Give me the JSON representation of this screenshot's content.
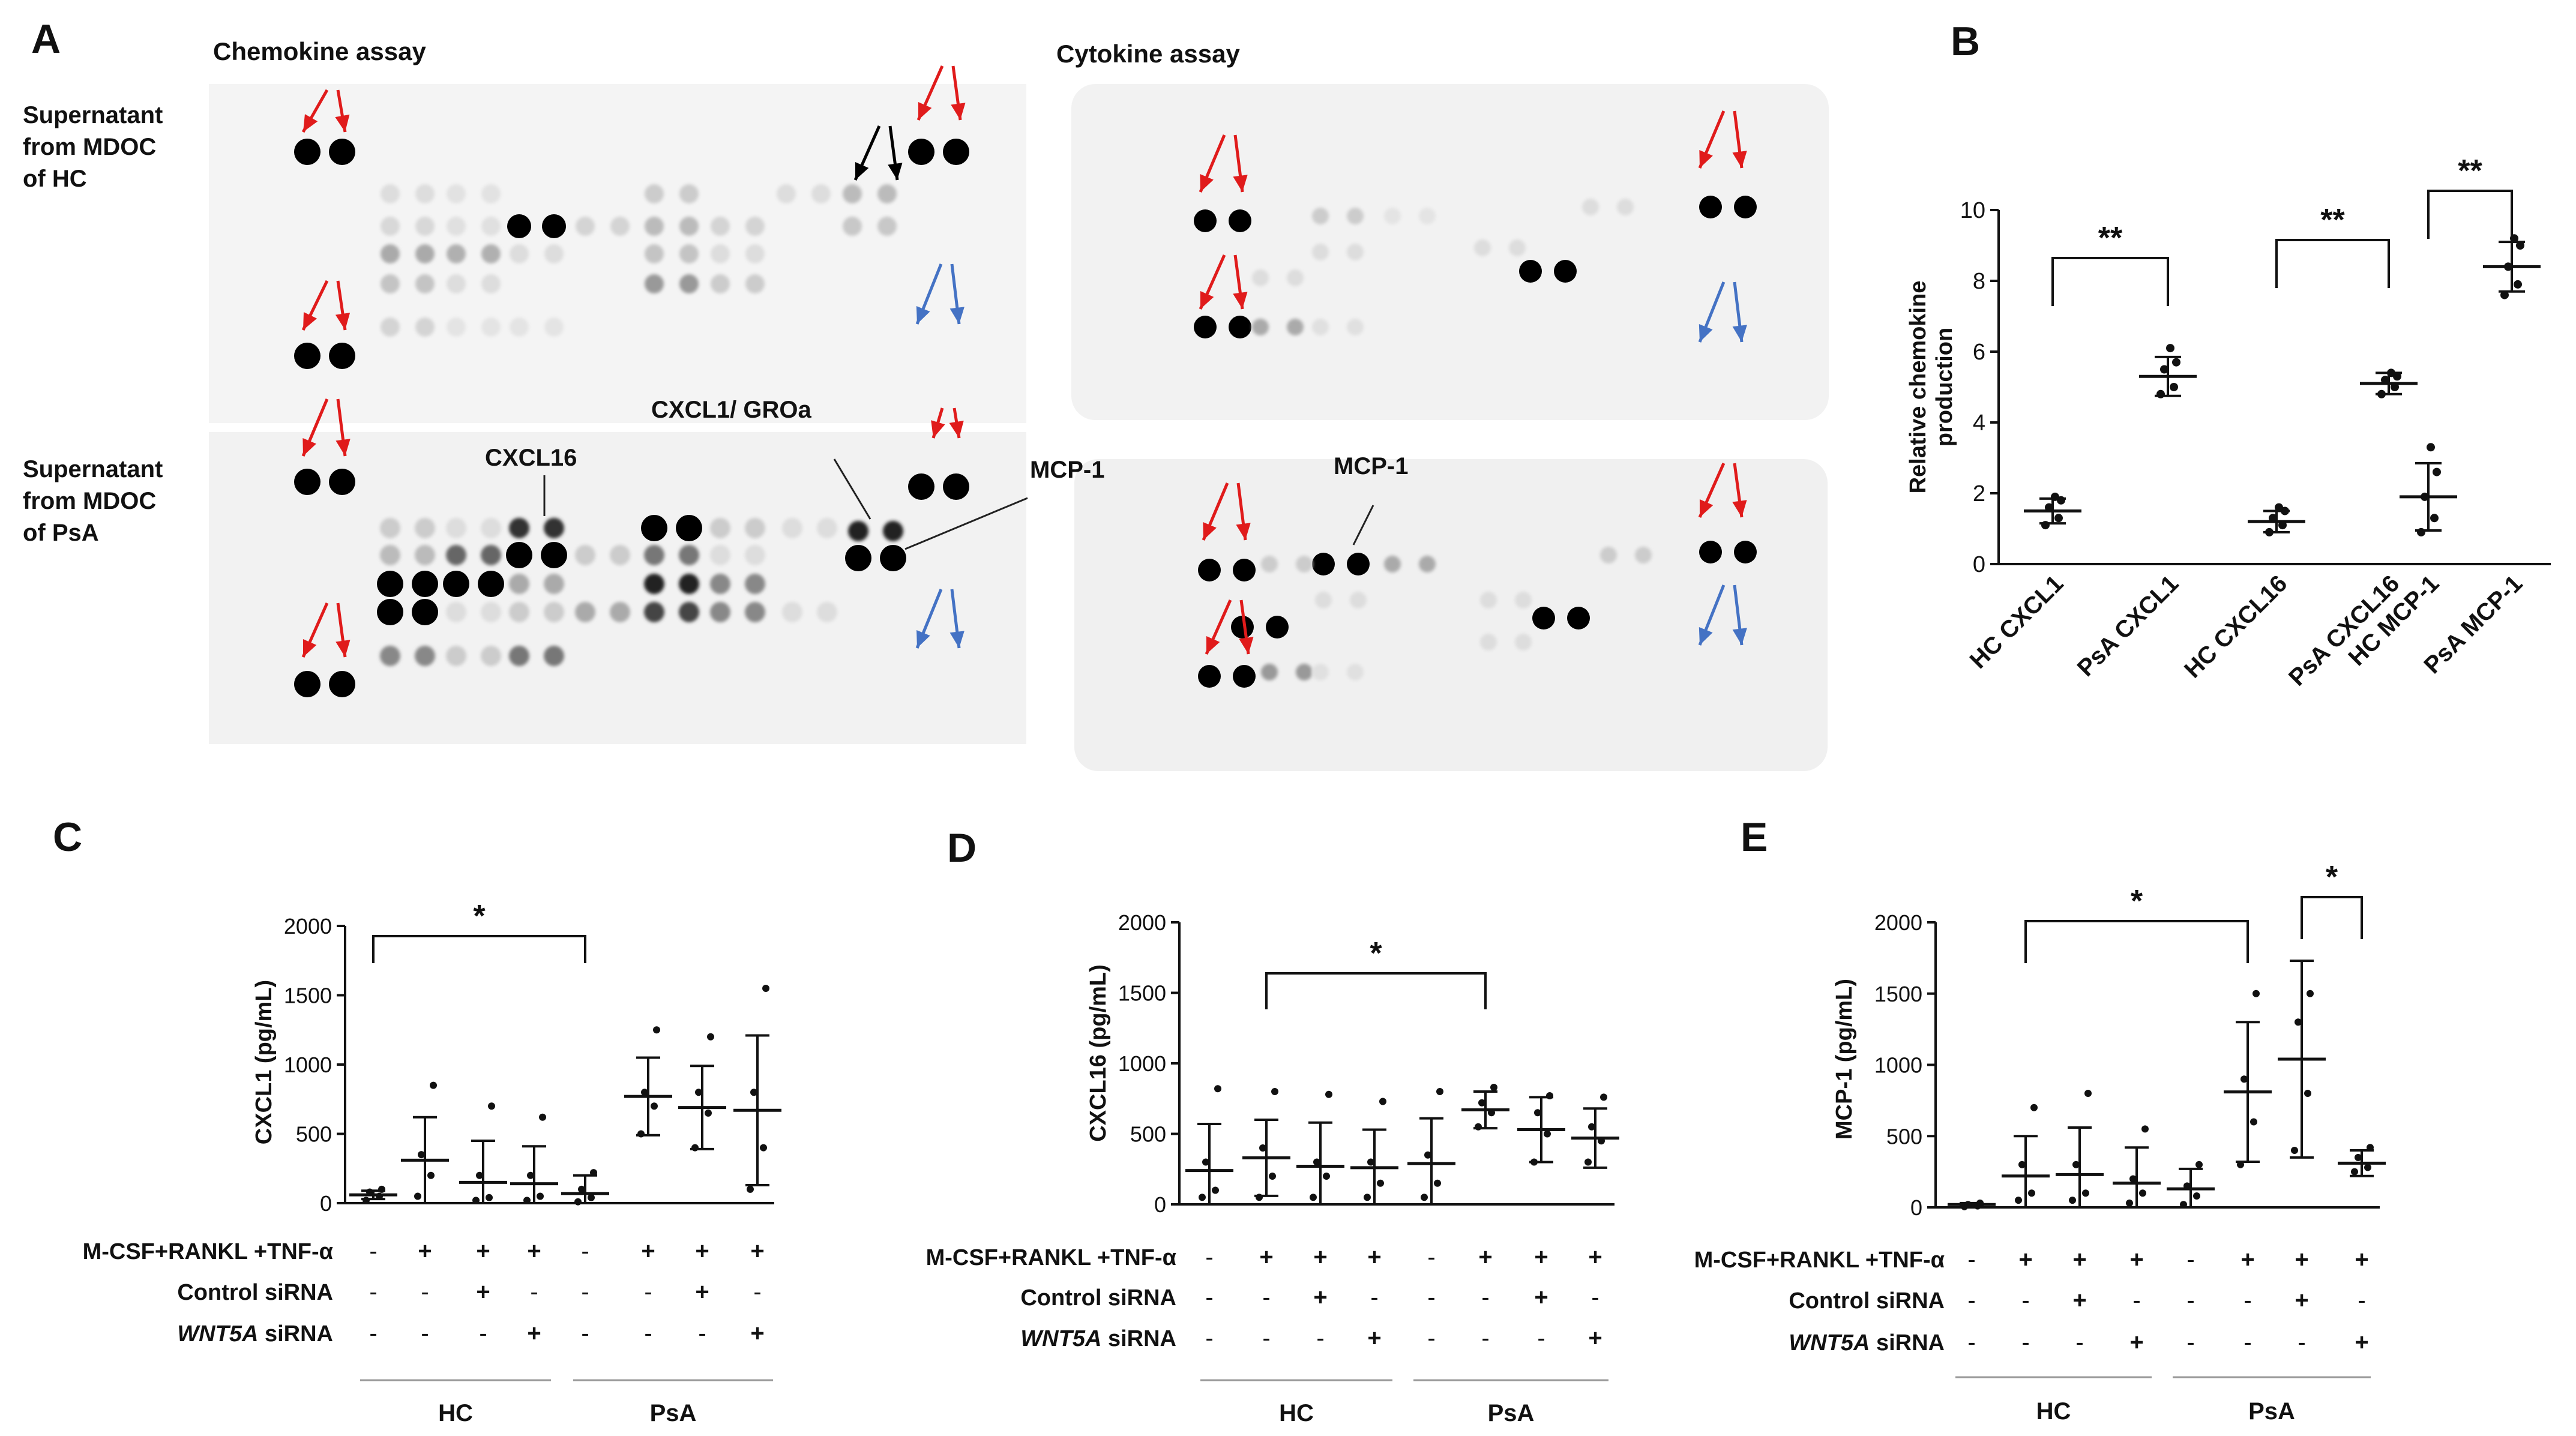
{
  "panels": {
    "A": {
      "letter": "A",
      "chemokine_title": "Chemokine assay",
      "cytokine_title": "Cytokine assay",
      "row_hc": [
        "Supernatant",
        "from MDOC",
        "of HC"
      ],
      "row_psa": [
        "Supernatant",
        "from MDOC",
        "of PsA"
      ],
      "annotations": {
        "cxcl16": "CXCL16",
        "cxcl1": "CXCL1/ GROa",
        "mcp1_chem": "MCP-1",
        "mcp1_cyto": "MCP-1"
      }
    },
    "B": {
      "letter": "B",
      "ylabel": [
        "Relative chemokine",
        "production"
      ],
      "yticks": [
        "0",
        "2",
        "4",
        "6",
        "8",
        "10"
      ],
      "categories": [
        "HC CXCL1",
        "PsA CXCL1",
        "HC CXCL16",
        "PsA CXCL16",
        "HC MCP-1",
        "PsA MCP-1"
      ],
      "sig": [
        "**",
        "**",
        "**"
      ]
    },
    "C": {
      "letter": "C",
      "ylabel": "CXCL1 (pg/mL)",
      "yticks": [
        "0",
        "500",
        "1000",
        "1500",
        "2000"
      ],
      "sig": [
        "*"
      ],
      "conditions": [
        "M-CSF+RANKL +TNF-α",
        "Control siRNA",
        "WNT5A siRNA"
      ],
      "groups": [
        "HC",
        "PsA"
      ]
    },
    "D": {
      "letter": "D",
      "ylabel": "CXCL16  (pg/mL)",
      "yticks": [
        "0",
        "500",
        "1000",
        "1500",
        "2000"
      ],
      "sig": [
        "*"
      ],
      "conditions": [
        "M-CSF+RANKL +TNF-α",
        "Control siRNA",
        "WNT5A siRNA"
      ],
      "groups": [
        "HC",
        "PsA"
      ]
    },
    "E": {
      "letter": "E",
      "ylabel": "MCP-1 (pg/mL)",
      "yticks": [
        "0",
        "500",
        "1000",
        "1500",
        "2000"
      ],
      "sig": [
        "*",
        "*"
      ],
      "conditions": [
        "M-CSF+RANKL +TNF-α",
        "Control siRNA",
        "WNT5A siRNA"
      ],
      "groups": [
        "HC",
        "PsA"
      ]
    }
  },
  "treatment_matrix": [
    [
      "-",
      "+",
      "+",
      "+",
      "-",
      "+",
      "+",
      "+"
    ],
    [
      "-",
      "-",
      "+",
      "-",
      "-",
      "-",
      "+",
      "-"
    ],
    [
      "-",
      "-",
      "-",
      "+",
      "-",
      "-",
      "-",
      "+"
    ]
  ],
  "colors": {
    "red_arrow": "#e01b1b",
    "blue_arrow": "#4472c4",
    "black_arrow": "#000000",
    "membrane": "#f4f4f4"
  },
  "chart_data": [
    {
      "type": "scatter",
      "title": "B",
      "ylabel": "Relative chemokine production",
      "ylim": [
        0,
        10
      ],
      "categories": [
        "HC CXCL1",
        "PsA CXCL1",
        "HC CXCL16",
        "PsA CXCL16",
        "HC MCP-1",
        "PsA MCP-1"
      ],
      "mean": [
        1.5,
        5.3,
        1.2,
        5.1,
        1.9,
        8.4
      ],
      "sd": [
        0.35,
        0.55,
        0.3,
        0.3,
        0.95,
        0.7
      ],
      "points": [
        [
          1.1,
          1.3,
          1.6,
          1.8,
          1.9
        ],
        [
          4.8,
          5.0,
          5.5,
          5.7,
          6.1
        ],
        [
          0.9,
          1.1,
          1.3,
          1.5,
          1.6
        ],
        [
          4.8,
          5.0,
          5.2,
          5.3,
          5.4
        ],
        [
          0.9,
          1.3,
          1.9,
          2.6,
          3.3
        ],
        [
          7.6,
          7.9,
          8.4,
          9.0,
          9.2
        ]
      ],
      "significance": [
        {
          "from": 0,
          "to": 1,
          "label": "**"
        },
        {
          "from": 2,
          "to": 3,
          "label": "**"
        },
        {
          "from": 4,
          "to": 5,
          "label": "**"
        }
      ]
    },
    {
      "type": "scatter",
      "title": "C",
      "ylabel": "CXCL1 (pg/mL)",
      "ylim": [
        0,
        2000
      ],
      "groups": [
        "HC",
        "PsA"
      ],
      "mean": [
        60,
        310,
        150,
        140,
        70,
        770,
        690,
        670
      ],
      "sd": [
        30,
        310,
        300,
        270,
        130,
        280,
        300,
        540
      ],
      "points": [
        [
          20,
          50,
          80,
          100
        ],
        [
          50,
          200,
          350,
          850
        ],
        [
          20,
          40,
          200,
          700
        ],
        [
          20,
          50,
          200,
          620
        ],
        [
          10,
          40,
          100,
          220
        ],
        [
          500,
          700,
          800,
          1250
        ],
        [
          400,
          650,
          800,
          1200
        ],
        [
          100,
          400,
          800,
          1550
        ]
      ],
      "significance": [
        {
          "from": 0,
          "to": 4,
          "label": "*"
        }
      ]
    },
    {
      "type": "scatter",
      "title": "D",
      "ylabel": "CXCL16  (pg/mL)",
      "ylim": [
        0,
        2000
      ],
      "groups": [
        "HC",
        "PsA"
      ],
      "mean": [
        240,
        330,
        270,
        260,
        290,
        670,
        530,
        470
      ],
      "sd": [
        330,
        270,
        310,
        270,
        320,
        130,
        230,
        210
      ],
      "points": [
        [
          50,
          100,
          300,
          820
        ],
        [
          50,
          200,
          400,
          800
        ],
        [
          50,
          200,
          300,
          780
        ],
        [
          50,
          150,
          300,
          730
        ],
        [
          50,
          150,
          350,
          800
        ],
        [
          550,
          650,
          720,
          830
        ],
        [
          300,
          500,
          650,
          770
        ],
        [
          300,
          450,
          550,
          760
        ]
      ],
      "significance": [
        {
          "from": 1,
          "to": 5,
          "label": "*"
        }
      ]
    },
    {
      "type": "scatter",
      "title": "E",
      "ylabel": "MCP-1 (pg/mL)",
      "ylim": [
        0,
        2000
      ],
      "groups": [
        "HC",
        "PsA"
      ],
      "mean": [
        20,
        220,
        230,
        170,
        130,
        810,
        1040,
        310
      ],
      "sd": [
        10,
        280,
        330,
        250,
        140,
        490,
        690,
        90
      ],
      "points": [
        [
          5,
          10,
          20,
          30
        ],
        [
          50,
          100,
          300,
          700
        ],
        [
          50,
          100,
          300,
          800
        ],
        [
          30,
          100,
          200,
          550
        ],
        [
          20,
          80,
          150,
          300
        ],
        [
          300,
          600,
          900,
          1500
        ],
        [
          400,
          800,
          1300,
          1500
        ],
        [
          250,
          280,
          350,
          420
        ]
      ],
      "significance": [
        {
          "from": 1,
          "to": 5,
          "label": "*"
        },
        {
          "from": 6,
          "to": 7,
          "label": "*"
        }
      ]
    }
  ]
}
